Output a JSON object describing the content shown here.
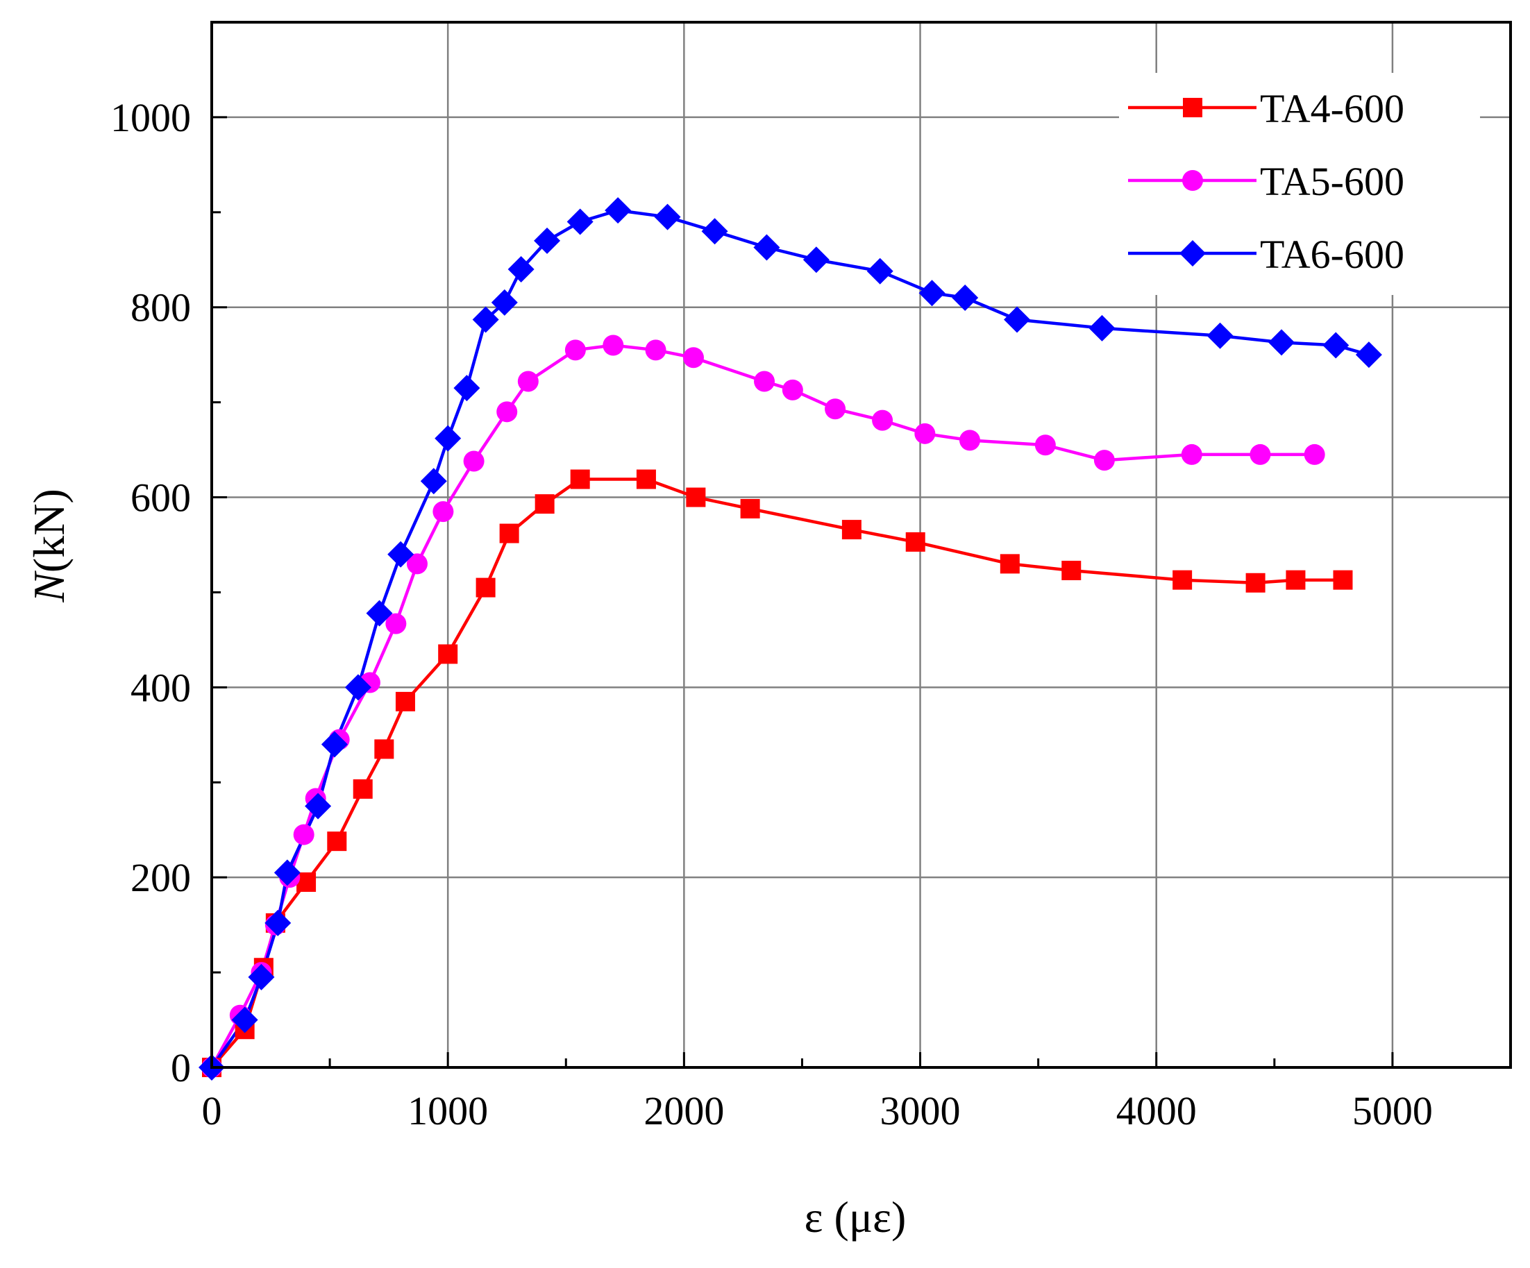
{
  "chart_data": {
    "type": "line",
    "title": "",
    "xlabel": "ε (με)",
    "ylabel_italic": "N",
    "ylabel_unit": "(kN)",
    "xlim": [
      0,
      5500
    ],
    "ylim": [
      0,
      1100
    ],
    "xticks": [
      0,
      1000,
      2000,
      3000,
      4000,
      5000
    ],
    "yticks": [
      0,
      200,
      400,
      600,
      800,
      1000
    ],
    "xtick_labels": [
      "0",
      "1000",
      "2000",
      "3000",
      "4000",
      "5000"
    ],
    "ytick_labels": [
      "0",
      "200",
      "400",
      "600",
      "800",
      "1000"
    ],
    "grid": true,
    "legend_position": "top-right",
    "series": [
      {
        "name": "TA4-600",
        "color": "#ff0000",
        "marker": "square",
        "x": [
          0,
          140,
          220,
          270,
          400,
          530,
          640,
          730,
          820,
          1000,
          1160,
          1260,
          1410,
          1560,
          1840,
          2050,
          2280,
          2710,
          2980,
          3380,
          3640,
          4110,
          4420,
          4590,
          4790
        ],
        "y": [
          0,
          40,
          105,
          152,
          195,
          238,
          293,
          335,
          385,
          435,
          505,
          562,
          593,
          619,
          619,
          600,
          588,
          566,
          553,
          530,
          523,
          513,
          510,
          513,
          513
        ]
      },
      {
        "name": "TA5-600",
        "color": "#ff00ff",
        "marker": "circle",
        "x": [
          0,
          120,
          210,
          270,
          330,
          390,
          440,
          540,
          670,
          780,
          870,
          980,
          1110,
          1250,
          1340,
          1540,
          1700,
          1880,
          2040,
          2340,
          2460,
          2640,
          2840,
          3020,
          3210,
          3530,
          3780,
          4150,
          4440,
          4670
        ],
        "y": [
          0,
          55,
          100,
          150,
          200,
          245,
          283,
          345,
          405,
          467,
          530,
          585,
          638,
          690,
          722,
          755,
          760,
          755,
          747,
          722,
          713,
          693,
          681,
          667,
          660,
          655,
          639,
          645,
          645,
          645
        ]
      },
      {
        "name": "TA6-600",
        "color": "#0000ff",
        "marker": "diamond",
        "x": [
          0,
          140,
          210,
          280,
          320,
          450,
          520,
          620,
          710,
          800,
          940,
          1000,
          1080,
          1160,
          1240,
          1310,
          1420,
          1560,
          1720,
          1930,
          2130,
          2350,
          2560,
          2830,
          3050,
          3190,
          3410,
          3770,
          4270,
          4530,
          4760,
          4900
        ],
        "y": [
          0,
          50,
          95,
          152,
          205,
          275,
          340,
          400,
          478,
          540,
          617,
          662,
          715,
          787,
          805,
          840,
          870,
          890,
          902,
          895,
          880,
          863,
          850,
          838,
          815,
          810,
          787,
          778,
          770,
          763,
          760,
          750
        ]
      }
    ]
  }
}
